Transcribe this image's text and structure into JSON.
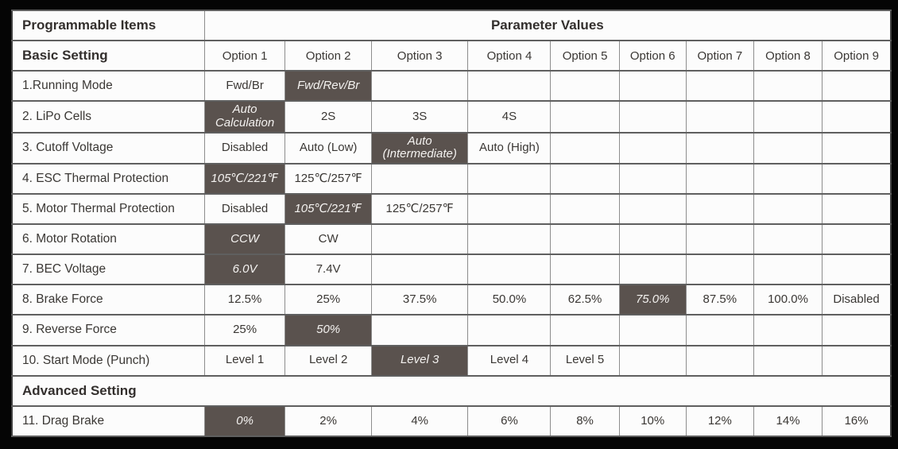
{
  "colors": {
    "highlight": "#5A524E",
    "frame_background": "#050505",
    "cell_background": "#fcfcfc",
    "text": "#3a3734"
  },
  "table": {
    "header": {
      "items_label": "Programmable Items",
      "values_label": "Parameter Values"
    },
    "basic_section_label": "Basic Setting",
    "options": [
      "Option 1",
      "Option 2",
      "Option 3",
      "Option 4",
      "Option 5",
      "Option 6",
      "Option 7",
      "Option 8",
      "Option 9"
    ],
    "rows": [
      {
        "type": "item",
        "label": "1.Running Mode",
        "cells": [
          {
            "text": "Fwd/Br"
          },
          {
            "text": "Fwd/Rev/Br",
            "selected": true
          }
        ]
      },
      {
        "type": "item",
        "label": "2. LiPo Cells",
        "cells": [
          {
            "text": "Auto Calculation",
            "selected": true
          },
          {
            "text": "2S"
          },
          {
            "text": "3S"
          },
          {
            "text": "4S"
          }
        ]
      },
      {
        "type": "item",
        "label": "3. Cutoff Voltage",
        "cells": [
          {
            "text": "Disabled"
          },
          {
            "text": "Auto (Low)"
          },
          {
            "text": "Auto (Intermediate)",
            "selected": true
          },
          {
            "text": "Auto (High)"
          }
        ]
      },
      {
        "type": "item",
        "label": "4. ESC Thermal Protection",
        "cells": [
          {
            "text": "105℃/221℉",
            "selected": true
          },
          {
            "text": "125℃/257℉"
          }
        ]
      },
      {
        "type": "item",
        "label": "5. Motor Thermal Protection",
        "cells": [
          {
            "text": "Disabled"
          },
          {
            "text": "105℃/221℉",
            "selected": true
          },
          {
            "text": "125℃/257℉"
          }
        ]
      },
      {
        "type": "item",
        "label": "6. Motor Rotation",
        "cells": [
          {
            "text": "CCW",
            "selected": true
          },
          {
            "text": "CW"
          }
        ]
      },
      {
        "type": "item",
        "label": "7. BEC Voltage",
        "cells": [
          {
            "text": "6.0V",
            "selected": true
          },
          {
            "text": "7.4V"
          }
        ]
      },
      {
        "type": "item",
        "label": "8. Brake Force",
        "cells": [
          {
            "text": "12.5%"
          },
          {
            "text": "25%"
          },
          {
            "text": "37.5%"
          },
          {
            "text": "50.0%"
          },
          {
            "text": "62.5%"
          },
          {
            "text": "75.0%",
            "selected": true
          },
          {
            "text": "87.5%"
          },
          {
            "text": "100.0%"
          },
          {
            "text": "Disabled"
          }
        ]
      },
      {
        "type": "item",
        "label": "9. Reverse Force",
        "cells": [
          {
            "text": "25%"
          },
          {
            "text": "50%",
            "selected": true
          }
        ]
      },
      {
        "type": "item",
        "label": "10. Start Mode (Punch)",
        "cells": [
          {
            "text": "Level 1"
          },
          {
            "text": "Level 2"
          },
          {
            "text": "Level 3",
            "selected": true
          },
          {
            "text": "Level 4"
          },
          {
            "text": "Level 5"
          }
        ]
      },
      {
        "type": "section",
        "label": "Advanced Setting"
      },
      {
        "type": "item",
        "label": "11. Drag Brake",
        "cells": [
          {
            "text": "0%",
            "selected": true
          },
          {
            "text": "2%"
          },
          {
            "text": "4%"
          },
          {
            "text": "6%"
          },
          {
            "text": "8%"
          },
          {
            "text": "10%"
          },
          {
            "text": "12%"
          },
          {
            "text": "14%"
          },
          {
            "text": "16%"
          }
        ]
      }
    ]
  }
}
